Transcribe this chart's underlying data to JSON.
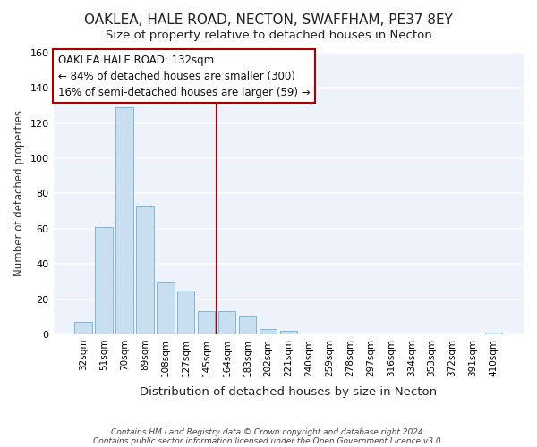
{
  "title": "OAKLEA, HALE ROAD, NECTON, SWAFFHAM, PE37 8EY",
  "subtitle": "Size of property relative to detached houses in Necton",
  "xlabel": "Distribution of detached houses by size in Necton",
  "ylabel": "Number of detached properties",
  "bar_labels": [
    "32sqm",
    "51sqm",
    "70sqm",
    "89sqm",
    "108sqm",
    "127sqm",
    "145sqm",
    "164sqm",
    "183sqm",
    "202sqm",
    "221sqm",
    "240sqm",
    "259sqm",
    "278sqm",
    "297sqm",
    "316sqm",
    "334sqm",
    "353sqm",
    "372sqm",
    "391sqm",
    "410sqm"
  ],
  "bar_values": [
    7,
    61,
    129,
    73,
    30,
    25,
    13,
    13,
    10,
    3,
    2,
    0,
    0,
    0,
    0,
    0,
    0,
    0,
    0,
    0,
    1
  ],
  "bar_color": "#c9dff0",
  "bar_edge_color": "#7db8d8",
  "vline_x": 6.5,
  "vline_color": "#aa0000",
  "annotation_title": "OAKLEA HALE ROAD: 132sqm",
  "annotation_line1": "← 84% of detached houses are smaller (300)",
  "annotation_line2": "16% of semi-detached houses are larger (59) →",
  "annotation_box_facecolor": "#ffffff",
  "annotation_box_edgecolor": "#aa0000",
  "ylim": [
    0,
    160
  ],
  "yticks": [
    0,
    20,
    40,
    60,
    80,
    100,
    120,
    140,
    160
  ],
  "footer1": "Contains HM Land Registry data © Crown copyright and database right 2024.",
  "footer2": "Contains public sector information licensed under the Open Government Licence v3.0.",
  "plot_bg_color": "#eef2fb",
  "fig_bg_color": "#ffffff",
  "grid_color": "#ffffff",
  "title_fontsize": 11,
  "subtitle_fontsize": 9.5,
  "ylabel_fontsize": 8.5,
  "xlabel_fontsize": 9.5
}
